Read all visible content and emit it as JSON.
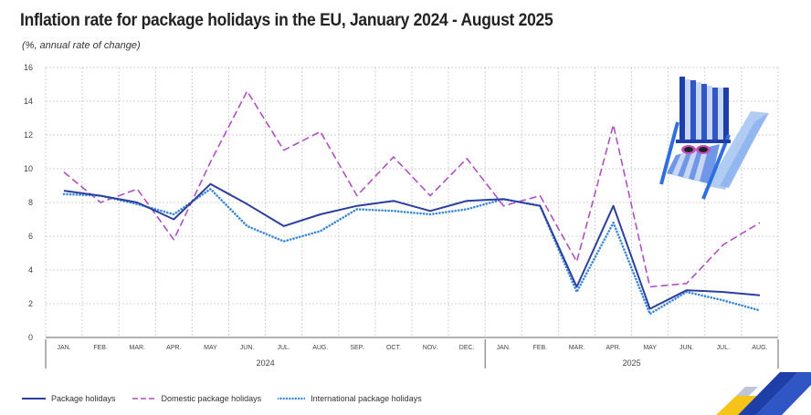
{
  "title": "Inflation rate for package holidays in the EU, January 2024 - August 2025",
  "subtitle": "(%, annual rate of change)",
  "colors": {
    "package": "#2c3e9e",
    "domestic": "#b24fc2",
    "international": "#3a88d8",
    "grid": "#d0d0d0",
    "axis": "#666666"
  },
  "chart_data": {
    "type": "line",
    "categories": [
      "JAN.",
      "FEB.",
      "MAR.",
      "APR.",
      "MAY",
      "JUN.",
      "JUL.",
      "AUG.",
      "SEP.",
      "OCT.",
      "NOV.",
      "DEC.",
      "JAN.",
      "FEB.",
      "MAR.",
      "APR.",
      "MAY",
      "JUN.",
      "JUL.",
      "AUG."
    ],
    "year_labels": [
      "2024",
      "2025"
    ],
    "yticks": [
      "0",
      "2",
      "4",
      "6",
      "8",
      "10",
      "12",
      "14",
      "16"
    ],
    "ylim": [
      0,
      16
    ],
    "grid": true,
    "legend_position": "bottom",
    "series": [
      {
        "name": "Package holidays",
        "style": "solid",
        "values": [
          8.7,
          8.4,
          8.0,
          7.0,
          9.1,
          7.9,
          6.6,
          7.3,
          7.8,
          8.1,
          7.5,
          8.1,
          8.2,
          7.8,
          3.0,
          7.8,
          1.7,
          2.8,
          2.7,
          2.5
        ]
      },
      {
        "name": "Domestic package holidays",
        "style": "dashed",
        "values": [
          9.8,
          8.0,
          8.8,
          5.8,
          10.4,
          14.6,
          11.1,
          12.2,
          8.4,
          10.7,
          8.4,
          10.6,
          7.8,
          8.4,
          4.5,
          12.6,
          3.0,
          3.2,
          5.5,
          6.8
        ]
      },
      {
        "name": "International package holidays",
        "style": "dotted",
        "values": [
          8.5,
          8.4,
          7.9,
          7.3,
          8.8,
          6.6,
          5.7,
          6.3,
          7.6,
          7.5,
          7.3,
          7.6,
          8.2,
          7.8,
          2.7,
          6.8,
          1.4,
          2.7,
          2.2,
          1.6
        ]
      }
    ]
  }
}
